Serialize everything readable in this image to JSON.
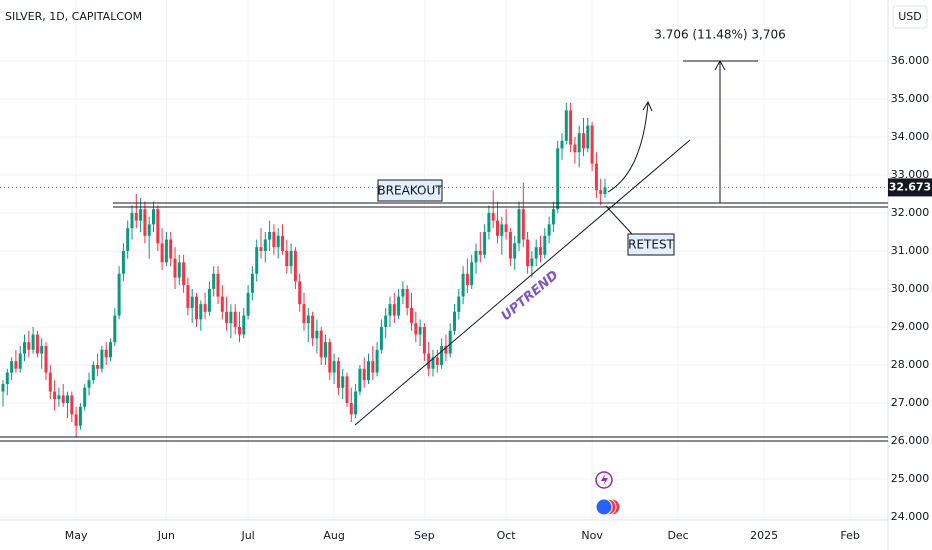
{
  "chart_data": {
    "type": "candlestick",
    "title": "SILVER, 1D, CAPITALCOM",
    "currency": "USD",
    "annotations": [
      "BREAKOUT",
      "RETEST",
      "UPTREND",
      "3.706 (11.48%) 3,706"
    ],
    "up_color": "#089981",
    "down_color": "#f23645",
    "grid": true,
    "ylim": [
      23.92,
      37.605
    ],
    "yticks": [
      {
        "value": 24,
        "label": "24.000"
      },
      {
        "value": 25,
        "label": "25.000"
      },
      {
        "value": 26,
        "label": "26.000"
      },
      {
        "value": 27,
        "label": "27.000"
      },
      {
        "value": 28,
        "label": "28.000"
      },
      {
        "value": 29,
        "label": "29.000"
      },
      {
        "value": 30,
        "label": "30.000"
      },
      {
        "value": 31,
        "label": "31.000"
      },
      {
        "value": 32,
        "label": "32.000"
      },
      {
        "value": 33,
        "label": "33.000"
      },
      {
        "value": 34,
        "label": "34.000"
      },
      {
        "value": 35,
        "label": "35.000"
      },
      {
        "value": 36,
        "label": "36.000"
      }
    ],
    "categories": [
      null,
      null,
      null,
      null,
      null,
      null,
      null,
      null,
      null,
      null,
      null,
      null,
      null,
      null,
      null,
      null,
      null,
      "May",
      null,
      null,
      null,
      null,
      null,
      null,
      null,
      null,
      null,
      null,
      null,
      null,
      null,
      null,
      null,
      null,
      null,
      null,
      null,
      null,
      "Jun",
      null,
      null,
      null,
      null,
      null,
      null,
      null,
      null,
      null,
      null,
      null,
      null,
      null,
      null,
      null,
      null,
      null,
      null,
      "Jul",
      null,
      null,
      null,
      null,
      null,
      null,
      null,
      null,
      null,
      null,
      null,
      null,
      null,
      null,
      null,
      null,
      null,
      null,
      null,
      "Aug",
      null,
      null,
      null,
      null,
      null,
      null,
      null,
      null,
      null,
      null,
      null,
      null,
      null,
      null,
      null,
      null,
      null,
      null,
      null,
      null,
      "Sep",
      null,
      null,
      null,
      null,
      null,
      null,
      null,
      null,
      null,
      null,
      null,
      null,
      null,
      null,
      null,
      null,
      null,
      null,
      "Oct",
      null,
      null,
      null,
      null,
      null,
      null,
      null,
      null,
      null,
      null,
      null,
      null,
      null,
      null,
      null,
      null,
      null,
      null,
      null,
      "Nov",
      null,
      null,
      null,
      null,
      null,
      null,
      null,
      null,
      null,
      null,
      null,
      null,
      null,
      null,
      null,
      null,
      null,
      null,
      null,
      "Dec",
      null,
      null,
      null,
      null,
      null,
      null,
      null,
      null,
      null,
      null,
      null,
      null,
      null,
      null,
      null,
      null,
      null,
      null,
      null,
      "2025",
      null,
      null,
      null,
      null,
      null,
      null,
      null,
      null,
      null,
      null,
      null,
      null,
      null,
      null,
      null,
      null,
      null,
      null,
      null,
      "Feb",
      null,
      null,
      null,
      null,
      null,
      null,
      null
    ],
    "values": [
      [
        27.3,
        27.6,
        26.9,
        27.5
      ],
      [
        27.5,
        27.9,
        27.2,
        27.8
      ],
      [
        27.8,
        28.2,
        27.6,
        28.1
      ],
      [
        28.1,
        28.4,
        27.8,
        27.9
      ],
      [
        27.9,
        28.5,
        27.8,
        28.3
      ],
      [
        28.3,
        28.8,
        28.1,
        28.6
      ],
      [
        28.6,
        28.9,
        28.2,
        28.4
      ],
      [
        28.4,
        29.0,
        28.3,
        28.8
      ],
      [
        28.8,
        28.9,
        28.2,
        28.3
      ],
      [
        28.3,
        28.7,
        27.9,
        28.5
      ],
      [
        28.5,
        28.6,
        27.6,
        27.8
      ],
      [
        27.8,
        28.0,
        27.1,
        27.3
      ],
      [
        27.3,
        27.6,
        26.8,
        27.1
      ],
      [
        27.1,
        27.4,
        26.9,
        27.2
      ],
      [
        27.2,
        27.5,
        26.9,
        27.0
      ],
      [
        27.0,
        27.3,
        26.6,
        27.2
      ],
      [
        27.2,
        27.3,
        26.5,
        26.7
      ],
      [
        26.7,
        26.9,
        26.1,
        26.4
      ],
      [
        26.4,
        27.0,
        26.3,
        26.9
      ],
      [
        26.9,
        27.5,
        26.8,
        27.4
      ],
      [
        27.4,
        27.8,
        27.2,
        27.6
      ],
      [
        27.6,
        28.1,
        27.5,
        28.0
      ],
      [
        28.0,
        28.3,
        27.7,
        27.9
      ],
      [
        27.9,
        28.5,
        27.8,
        28.4
      ],
      [
        28.4,
        28.6,
        28.0,
        28.2
      ],
      [
        28.2,
        28.7,
        28.1,
        28.6
      ],
      [
        28.6,
        29.5,
        28.5,
        29.3
      ],
      [
        29.3,
        30.6,
        29.2,
        30.4
      ],
      [
        30.4,
        31.2,
        30.2,
        31.0
      ],
      [
        31.0,
        31.8,
        30.8,
        31.6
      ],
      [
        31.6,
        32.2,
        31.3,
        32.0
      ],
      [
        32.0,
        32.5,
        31.6,
        31.8
      ],
      [
        31.8,
        32.4,
        31.5,
        32.1
      ],
      [
        32.1,
        32.3,
        31.2,
        31.4
      ],
      [
        31.4,
        31.9,
        30.8,
        31.7
      ],
      [
        31.7,
        32.3,
        31.5,
        32.1
      ],
      [
        32.1,
        32.2,
        31.0,
        31.2
      ],
      [
        31.2,
        31.6,
        30.5,
        30.7
      ],
      [
        30.7,
        31.5,
        30.6,
        31.3
      ],
      [
        31.3,
        31.5,
        30.6,
        30.8
      ],
      [
        30.8,
        31.1,
        30.0,
        30.3
      ],
      [
        30.3,
        30.9,
        30.1,
        30.7
      ],
      [
        30.7,
        30.9,
        29.9,
        30.1
      ],
      [
        30.1,
        30.3,
        29.3,
        29.5
      ],
      [
        29.5,
        30.0,
        29.1,
        29.8
      ],
      [
        29.8,
        29.9,
        29.0,
        29.2
      ],
      [
        29.2,
        29.7,
        28.9,
        29.6
      ],
      [
        29.6,
        29.9,
        29.2,
        29.4
      ],
      [
        29.4,
        30.2,
        29.3,
        30.0
      ],
      [
        30.0,
        30.6,
        29.8,
        30.4
      ],
      [
        30.4,
        30.6,
        29.6,
        29.8
      ],
      [
        29.8,
        30.1,
        29.2,
        29.4
      ],
      [
        29.4,
        29.8,
        28.9,
        29.1
      ],
      [
        29.1,
        29.6,
        28.7,
        29.4
      ],
      [
        29.4,
        29.6,
        28.8,
        29.0
      ],
      [
        29.0,
        29.4,
        28.6,
        28.8
      ],
      [
        28.8,
        29.5,
        28.7,
        29.3
      ],
      [
        29.3,
        30.1,
        29.2,
        29.9
      ],
      [
        29.9,
        30.6,
        29.7,
        30.4
      ],
      [
        30.4,
        31.3,
        30.2,
        31.1
      ],
      [
        31.1,
        31.6,
        30.8,
        31.0
      ],
      [
        31.0,
        31.5,
        30.7,
        31.3
      ],
      [
        31.3,
        31.8,
        31.0,
        31.5
      ],
      [
        31.5,
        31.7,
        30.9,
        31.1
      ],
      [
        31.1,
        31.6,
        30.8,
        31.4
      ],
      [
        31.4,
        31.7,
        30.9,
        31.0
      ],
      [
        31.0,
        31.3,
        30.4,
        30.6
      ],
      [
        30.6,
        31.2,
        30.4,
        31.0
      ],
      [
        31.0,
        31.1,
        30.0,
        30.2
      ],
      [
        30.2,
        30.4,
        29.4,
        29.6
      ],
      [
        29.6,
        29.9,
        28.9,
        29.1
      ],
      [
        29.1,
        29.5,
        28.6,
        29.3
      ],
      [
        29.3,
        29.4,
        28.5,
        28.7
      ],
      [
        28.7,
        29.2,
        28.3,
        28.9
      ],
      [
        28.9,
        29.0,
        28.0,
        28.2
      ],
      [
        28.2,
        28.8,
        28.0,
        28.6
      ],
      [
        28.6,
        28.7,
        27.6,
        27.8
      ],
      [
        27.8,
        28.3,
        27.5,
        28.1
      ],
      [
        28.1,
        28.2,
        27.2,
        27.4
      ],
      [
        27.4,
        27.9,
        27.1,
        27.7
      ],
      [
        27.7,
        27.8,
        26.9,
        27.0
      ],
      [
        27.0,
        27.4,
        26.5,
        26.7
      ],
      [
        26.7,
        27.5,
        26.6,
        27.3
      ],
      [
        27.3,
        28.0,
        27.2,
        27.9
      ],
      [
        27.9,
        28.2,
        27.4,
        27.6
      ],
      [
        27.6,
        28.3,
        27.5,
        28.1
      ],
      [
        28.1,
        28.5,
        27.6,
        27.8
      ],
      [
        27.8,
        28.6,
        27.7,
        28.4
      ],
      [
        28.4,
        29.2,
        28.3,
        29.0
      ],
      [
        29.0,
        29.5,
        28.7,
        29.3
      ],
      [
        29.3,
        29.8,
        29.0,
        29.6
      ],
      [
        29.6,
        29.9,
        29.1,
        29.3
      ],
      [
        29.3,
        30.0,
        29.2,
        29.8
      ],
      [
        29.8,
        30.2,
        29.6,
        30.0
      ],
      [
        30.0,
        30.1,
        29.3,
        29.5
      ],
      [
        29.5,
        29.9,
        28.9,
        29.1
      ],
      [
        29.1,
        29.4,
        28.6,
        28.8
      ],
      [
        28.8,
        29.2,
        28.5,
        29.0
      ],
      [
        29.0,
        29.1,
        28.1,
        28.3
      ],
      [
        28.3,
        28.6,
        27.7,
        27.9
      ],
      [
        27.9,
        28.4,
        27.7,
        28.2
      ],
      [
        28.2,
        28.4,
        27.8,
        28.0
      ],
      [
        28.0,
        28.7,
        27.9,
        28.5
      ],
      [
        28.5,
        28.8,
        28.1,
        28.3
      ],
      [
        28.3,
        29.1,
        28.2,
        28.9
      ],
      [
        28.9,
        29.6,
        28.8,
        29.4
      ],
      [
        29.4,
        30.0,
        29.2,
        29.8
      ],
      [
        29.8,
        30.6,
        29.6,
        30.4
      ],
      [
        30.4,
        30.8,
        29.9,
        30.1
      ],
      [
        30.1,
        30.9,
        30.0,
        30.7
      ],
      [
        30.7,
        31.2,
        30.4,
        31.0
      ],
      [
        31.0,
        31.5,
        30.7,
        30.9
      ],
      [
        30.9,
        31.7,
        30.8,
        31.5
      ],
      [
        31.5,
        32.2,
        31.3,
        32.0
      ],
      [
        32.0,
        32.6,
        31.6,
        31.8
      ],
      [
        31.8,
        32.3,
        31.2,
        31.4
      ],
      [
        31.4,
        31.9,
        30.9,
        31.7
      ],
      [
        31.7,
        32.1,
        31.3,
        31.5
      ],
      [
        31.5,
        31.6,
        30.6,
        30.8
      ],
      [
        30.8,
        31.4,
        30.5,
        31.2
      ],
      [
        31.2,
        32.3,
        31.0,
        32.1
      ],
      [
        32.1,
        32.8,
        31.1,
        31.3
      ],
      [
        31.3,
        31.5,
        30.4,
        30.6
      ],
      [
        30.6,
        31.0,
        30.3,
        30.8
      ],
      [
        30.8,
        31.3,
        30.6,
        31.1
      ],
      [
        31.1,
        31.4,
        30.7,
        30.9
      ],
      [
        30.9,
        31.6,
        30.8,
        31.4
      ],
      [
        31.4,
        31.9,
        31.2,
        31.7
      ],
      [
        31.7,
        32.3,
        31.5,
        32.1
      ],
      [
        32.1,
        33.9,
        32.0,
        33.7
      ],
      [
        33.7,
        34.1,
        33.4,
        33.9
      ],
      [
        33.9,
        34.9,
        33.8,
        34.7
      ],
      [
        34.7,
        34.9,
        33.6,
        33.8
      ],
      [
        33.8,
        34.0,
        33.3,
        33.6
      ],
      [
        33.6,
        34.3,
        33.2,
        34.1
      ],
      [
        34.1,
        34.5,
        33.5,
        33.7
      ],
      [
        33.7,
        34.5,
        33.6,
        34.3
      ],
      [
        34.3,
        34.4,
        33.1,
        33.3
      ],
      [
        33.3,
        33.6,
        32.4,
        32.6
      ],
      [
        32.6,
        32.9,
        32.2,
        32.5
      ],
      [
        32.5,
        32.9,
        32.4,
        32.673
      ],
      null,
      null,
      null,
      null,
      null,
      null,
      null,
      null,
      null,
      null,
      null,
      null,
      null,
      null,
      null,
      null,
      null,
      null,
      null,
      null,
      null,
      null,
      null,
      null,
      null,
      null,
      null,
      null,
      null,
      null,
      null,
      null,
      null,
      null,
      null,
      null,
      null,
      null,
      null,
      null,
      null,
      null,
      null,
      null,
      null,
      null,
      null,
      null,
      null,
      null,
      null,
      null,
      null,
      null,
      null,
      null,
      null,
      null,
      null,
      null,
      null,
      null,
      null,
      null
    ]
  }
}
